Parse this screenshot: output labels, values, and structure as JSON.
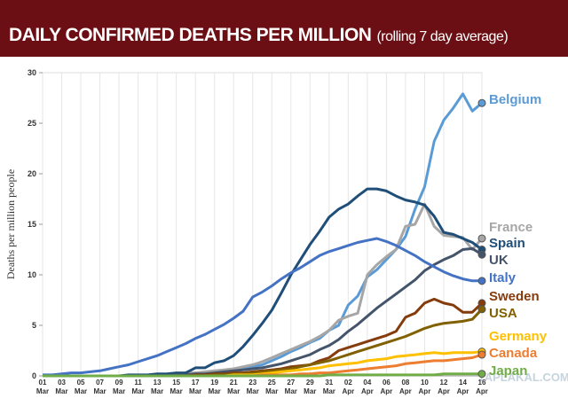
{
  "chart_data": {
    "type": "line",
    "title": "DAILY CONFIRMED DEATHS PER MILLION",
    "subtitle": "(rolling 7 day average)",
    "y_label": "Deaths per million people",
    "watermark": "YAPLAKAL.COM",
    "categories": [
      "01 Mar",
      null,
      "03 Mar",
      null,
      "05 Mar",
      null,
      "07 Mar",
      null,
      "09 Mar",
      null,
      "11 Mar",
      null,
      "13 Mar",
      null,
      "15 Mar",
      null,
      "17 Mar",
      null,
      "19 Mar",
      null,
      "21 Mar",
      null,
      "23 Mar",
      null,
      "25 Mar",
      null,
      "27 Mar",
      null,
      "29 Mar",
      null,
      "31 Mar",
      null,
      "02 Apr",
      null,
      "04 Apr",
      null,
      "06 Apr",
      null,
      "08 Apr",
      null,
      "10 Apr",
      null,
      "12 Apr",
      null,
      "14 Apr",
      null,
      "16 Apr"
    ],
    "ylim": [
      0,
      30
    ],
    "yticks": [
      0,
      5,
      10,
      15,
      20,
      25,
      30
    ],
    "grid": true,
    "series": [
      {
        "name": "Belgium",
        "color": "#5b9bd5",
        "values": [
          0,
          0,
          0,
          0,
          0,
          0,
          0,
          0,
          0,
          0,
          0,
          0,
          0,
          0,
          0.1,
          0.1,
          0.2,
          0.3,
          0.4,
          0.5,
          0.6,
          0.8,
          0.9,
          1.1,
          1.5,
          1.9,
          2.4,
          2.8,
          3.3,
          3.7,
          4.5,
          5.0,
          7.0,
          7.9,
          9.8,
          10.5,
          11.5,
          12.5,
          13.8,
          16.5,
          18.7,
          23.2,
          25.3,
          26.5,
          27.9,
          26.2,
          27.0
        ]
      },
      {
        "name": "France",
        "color": "#a6a6a6",
        "values": [
          0,
          0,
          0,
          0,
          0,
          0,
          0,
          0,
          0,
          0,
          0,
          0,
          0.1,
          0.1,
          0.2,
          0.3,
          0.3,
          0.4,
          0.5,
          0.6,
          0.7,
          0.9,
          1.1,
          1.4,
          1.8,
          2.2,
          2.6,
          3.0,
          3.4,
          3.9,
          4.5,
          5.5,
          5.9,
          6.2,
          10.0,
          11.0,
          11.8,
          12.5,
          14.8,
          15.0,
          17.0,
          14.8,
          13.9,
          13.8,
          13.7,
          12.5,
          13.6
        ]
      },
      {
        "name": "Spain",
        "color": "#1f4e79",
        "values": [
          0,
          0,
          0,
          0,
          0,
          0,
          0,
          0,
          0,
          0.1,
          0.1,
          0.1,
          0.2,
          0.2,
          0.3,
          0.3,
          0.8,
          0.8,
          1.3,
          1.5,
          2.0,
          2.9,
          4.0,
          5.2,
          6.5,
          8.2,
          10.0,
          11.5,
          13.0,
          14.3,
          15.7,
          16.5,
          17.0,
          17.8,
          18.5,
          18.5,
          18.3,
          17.8,
          17.4,
          17.2,
          16.9,
          15.8,
          14.2,
          14.0,
          13.6,
          13.2,
          12.5
        ]
      },
      {
        "name": "UK",
        "color": "#44546a",
        "values": [
          0,
          0,
          0,
          0,
          0,
          0,
          0,
          0,
          0,
          0,
          0,
          0,
          0,
          0,
          0.1,
          0.1,
          0.2,
          0.2,
          0.3,
          0.4,
          0.5,
          0.6,
          0.7,
          0.8,
          1.0,
          1.2,
          1.5,
          1.8,
          2.1,
          2.6,
          3.0,
          3.6,
          4.4,
          5.1,
          5.9,
          6.7,
          7.4,
          8.1,
          8.8,
          9.5,
          10.4,
          11.0,
          11.5,
          11.9,
          12.5,
          12.6,
          12.0
        ]
      },
      {
        "name": "Italy",
        "color": "#4472c4",
        "values": [
          0.1,
          0.1,
          0.2,
          0.3,
          0.3,
          0.4,
          0.5,
          0.7,
          0.9,
          1.1,
          1.4,
          1.7,
          2.0,
          2.4,
          2.8,
          3.2,
          3.7,
          4.1,
          4.6,
          5.1,
          5.7,
          6.4,
          7.8,
          8.3,
          8.9,
          9.6,
          10.2,
          10.7,
          11.3,
          11.9,
          12.3,
          12.6,
          12.9,
          13.2,
          13.4,
          13.6,
          13.3,
          12.9,
          12.4,
          11.9,
          11.3,
          10.8,
          10.3,
          9.9,
          9.6,
          9.4,
          9.4
        ]
      },
      {
        "name": "Sweden",
        "color": "#843c0c",
        "values": [
          0,
          0,
          0,
          0,
          0,
          0,
          0,
          0,
          0,
          0,
          0,
          0,
          0,
          0,
          0,
          0,
          0.1,
          0.1,
          0.2,
          0.2,
          0.3,
          0.3,
          0.4,
          0.5,
          0.6,
          0.7,
          0.9,
          1.0,
          1.1,
          1.5,
          1.8,
          2.5,
          2.8,
          3.1,
          3.4,
          3.7,
          4.0,
          4.4,
          5.8,
          6.2,
          7.2,
          7.6,
          7.2,
          7.0,
          6.3,
          6.3,
          7.2
        ]
      },
      {
        "name": "USA",
        "color": "#806000",
        "values": [
          0,
          0,
          0,
          0,
          0,
          0,
          0,
          0,
          0,
          0,
          0,
          0,
          0,
          0,
          0,
          0,
          0,
          0,
          0.1,
          0.1,
          0.2,
          0.2,
          0.3,
          0.4,
          0.5,
          0.6,
          0.7,
          0.9,
          1.1,
          1.3,
          1.5,
          1.8,
          2.1,
          2.4,
          2.7,
          3.0,
          3.3,
          3.6,
          3.9,
          4.3,
          4.7,
          5.0,
          5.2,
          5.3,
          5.4,
          5.6,
          6.6
        ]
      },
      {
        "name": "Germany",
        "color": "#ffc000",
        "values": [
          0,
          0,
          0,
          0,
          0,
          0,
          0,
          0,
          0,
          0,
          0,
          0,
          0,
          0,
          0,
          0,
          0,
          0,
          0,
          0,
          0.1,
          0.1,
          0.1,
          0.2,
          0.3,
          0.4,
          0.5,
          0.6,
          0.7,
          0.8,
          1.0,
          1.1,
          1.2,
          1.3,
          1.5,
          1.6,
          1.7,
          1.9,
          2.0,
          2.1,
          2.2,
          2.3,
          2.2,
          2.3,
          2.3,
          2.3,
          2.4
        ]
      },
      {
        "name": "Canada",
        "color": "#ed7d31",
        "values": [
          0,
          0,
          0,
          0,
          0,
          0,
          0,
          0,
          0,
          0,
          0,
          0,
          0,
          0,
          0,
          0,
          0,
          0,
          0,
          0,
          0,
          0,
          0,
          0.1,
          0.1,
          0.1,
          0.1,
          0.2,
          0.2,
          0.3,
          0.3,
          0.4,
          0.5,
          0.6,
          0.7,
          0.8,
          0.9,
          1.0,
          1.2,
          1.3,
          1.4,
          1.5,
          1.5,
          1.6,
          1.7,
          1.8,
          2.1
        ]
      },
      {
        "name": "Japan",
        "color": "#70ad47",
        "values": [
          0,
          0,
          0,
          0,
          0,
          0,
          0,
          0,
          0,
          0,
          0,
          0,
          0,
          0,
          0,
          0,
          0,
          0,
          0,
          0,
          0,
          0,
          0,
          0,
          0,
          0,
          0,
          0,
          0,
          0,
          0.1,
          0.1,
          0.1,
          0.1,
          0.1,
          0.1,
          0.1,
          0.1,
          0.1,
          0.1,
          0.1,
          0.1,
          0.2,
          0.2,
          0.2,
          0.2,
          0.2
        ]
      }
    ]
  }
}
